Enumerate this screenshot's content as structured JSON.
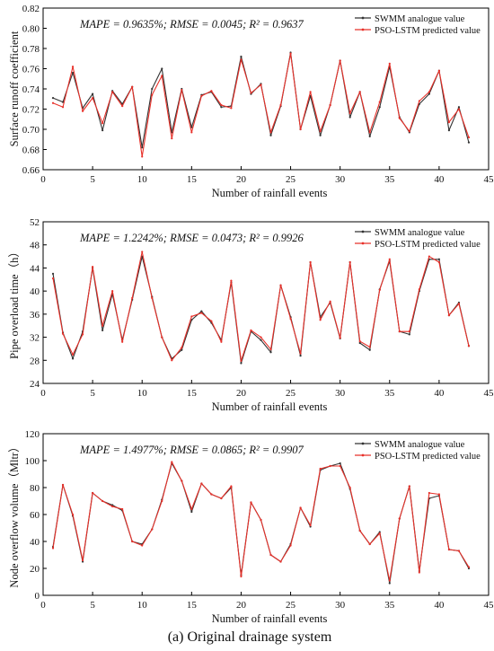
{
  "caption": "(a) Original drainage system",
  "colors": {
    "swmm": "#333333",
    "pso": "#e8312a"
  },
  "chart_data": [
    {
      "type": "line",
      "xlabel": "Number of rainfall events",
      "ylabel": "Surface runoff coefficient",
      "xlim": [
        0,
        45
      ],
      "ylim": [
        0.66,
        0.82
      ],
      "xticks": [
        "0",
        "5",
        "10",
        "15",
        "20",
        "25",
        "30",
        "35",
        "40",
        "45"
      ],
      "yticks": [
        "0.66",
        "0.68",
        "0.70",
        "0.72",
        "0.74",
        "0.76",
        "0.78",
        "0.80",
        "0.82"
      ],
      "metrics": "MAPE = 0.9635%; RMSE = 0.0045; R² = 0.9637",
      "legend_placement": "top-right",
      "x": [
        1,
        2,
        3,
        4,
        5,
        6,
        7,
        8,
        9,
        10,
        11,
        12,
        13,
        14,
        15,
        16,
        17,
        18,
        19,
        20,
        21,
        22,
        23,
        24,
        25,
        26,
        27,
        28,
        29,
        30,
        31,
        32,
        33,
        34,
        35,
        36,
        37,
        38,
        39,
        40,
        41,
        42,
        43
      ],
      "series": [
        {
          "name": "SWMM analogue value",
          "values": [
            0.731,
            0.727,
            0.756,
            0.721,
            0.735,
            0.699,
            0.738,
            0.725,
            0.742,
            0.682,
            0.74,
            0.76,
            0.697,
            0.74,
            0.702,
            0.734,
            0.737,
            0.722,
            0.723,
            0.772,
            0.735,
            0.745,
            0.694,
            0.723,
            0.776,
            0.7,
            0.733,
            0.694,
            0.724,
            0.768,
            0.712,
            0.737,
            0.693,
            0.722,
            0.762,
            0.712,
            0.697,
            0.725,
            0.735,
            0.758,
            0.699,
            0.722,
            0.687
          ]
        },
        {
          "name": "PSO-LSTM predicted value",
          "values": [
            0.726,
            0.722,
            0.762,
            0.718,
            0.731,
            0.706,
            0.737,
            0.723,
            0.742,
            0.673,
            0.734,
            0.753,
            0.691,
            0.739,
            0.697,
            0.733,
            0.738,
            0.724,
            0.721,
            0.769,
            0.736,
            0.744,
            0.697,
            0.724,
            0.775,
            0.7,
            0.737,
            0.698,
            0.724,
            0.768,
            0.716,
            0.737,
            0.697,
            0.727,
            0.765,
            0.711,
            0.698,
            0.728,
            0.737,
            0.758,
            0.707,
            0.72,
            0.692
          ]
        }
      ]
    },
    {
      "type": "line",
      "xlabel": "Number of rainfall events",
      "ylabel": "Pipe overload time（h）",
      "xlim": [
        0,
        45
      ],
      "ylim": [
        24,
        52
      ],
      "xticks": [
        "0",
        "5",
        "10",
        "15",
        "20",
        "25",
        "30",
        "35",
        "40",
        "45"
      ],
      "yticks": [
        "24",
        "28",
        "32",
        "36",
        "40",
        "44",
        "48",
        "52"
      ],
      "metrics": "MAPE = 1.2242%; RMSE = 0.0473; R² = 0.9926",
      "legend_placement": "top-right",
      "x": [
        1,
        2,
        3,
        4,
        5,
        6,
        7,
        8,
        9,
        10,
        11,
        12,
        13,
        14,
        15,
        16,
        17,
        18,
        19,
        20,
        21,
        22,
        23,
        24,
        25,
        26,
        27,
        28,
        29,
        30,
        31,
        32,
        33,
        34,
        35,
        36,
        37,
        38,
        39,
        40,
        41,
        42,
        43
      ],
      "series": [
        {
          "name": "SWMM analogue value",
          "values": [
            43,
            32.8,
            28.3,
            33,
            44,
            33.2,
            39.5,
            31.5,
            38.5,
            46,
            39,
            32,
            28.3,
            29.8,
            35,
            36.5,
            34.5,
            31.5,
            41.5,
            27.5,
            33,
            31.5,
            29.4,
            41,
            35.5,
            28.8,
            45,
            35.5,
            38,
            31.8,
            45,
            31,
            29.8,
            40.3,
            45.2,
            33,
            32.5,
            40,
            45.5,
            45.5,
            35.8,
            38,
            30.5
          ]
        },
        {
          "name": "PSO-LSTM predicted value",
          "values": [
            42.2,
            32.6,
            29,
            32.5,
            44.2,
            34,
            40,
            31.2,
            38.8,
            46.8,
            38.8,
            32,
            28,
            30.2,
            35.6,
            36.2,
            34.8,
            31.2,
            41.8,
            27.9,
            33.2,
            32,
            29.9,
            41,
            35.2,
            29.2,
            45,
            35,
            38.2,
            31.9,
            45,
            31.3,
            30.3,
            40.2,
            45.5,
            33,
            33,
            40.3,
            46,
            45,
            35.8,
            37.8,
            30.5
          ]
        }
      ]
    },
    {
      "type": "line",
      "xlabel": "Number of rainfall events",
      "ylabel": "Node overflow volume（Mltr）",
      "xlim": [
        0,
        45
      ],
      "ylim": [
        0,
        120
      ],
      "xticks": [
        "0",
        "5",
        "10",
        "15",
        "20",
        "25",
        "30",
        "35",
        "40",
        "45"
      ],
      "yticks": [
        "0",
        "20",
        "40",
        "60",
        "80",
        "100",
        "120"
      ],
      "metrics": "MAPE = 1.4977%; RMSE = 0.0865; R² = 0.9907",
      "legend_placement": "top-right",
      "x": [
        1,
        2,
        3,
        4,
        5,
        6,
        7,
        8,
        9,
        10,
        11,
        12,
        13,
        14,
        15,
        16,
        17,
        18,
        19,
        20,
        21,
        22,
        23,
        24,
        25,
        26,
        27,
        28,
        29,
        30,
        31,
        32,
        33,
        34,
        35,
        36,
        37,
        38,
        39,
        40,
        41,
        42,
        43
      ],
      "series": [
        {
          "name": "SWMM analogue value",
          "values": [
            36,
            82,
            59,
            25,
            76,
            70,
            67,
            63,
            40,
            38,
            49,
            71,
            98,
            85,
            62,
            83,
            75,
            72,
            80,
            15,
            69,
            56,
            30,
            25,
            38,
            65,
            51,
            93,
            96,
            98,
            79,
            48,
            38,
            47,
            9,
            57,
            81,
            18,
            72,
            74,
            34,
            33,
            20
          ]
        },
        {
          "name": "PSO-LSTM predicted value",
          "values": [
            35,
            82,
            60,
            26,
            76,
            70,
            66,
            64,
            40,
            37,
            49,
            70,
            99,
            85,
            64,
            83,
            75,
            72,
            81,
            14,
            69,
            56,
            30,
            25,
            37,
            65,
            52,
            94,
            96,
            96,
            80,
            48,
            38,
            46,
            11,
            57,
            81,
            17,
            76,
            75,
            34,
            33,
            21
          ]
        }
      ]
    }
  ]
}
